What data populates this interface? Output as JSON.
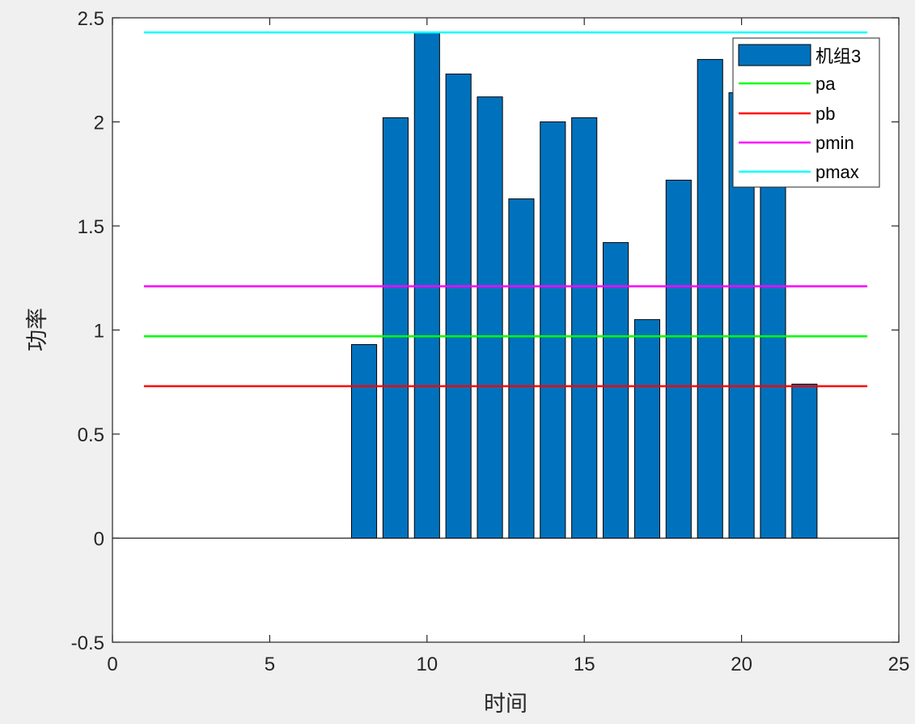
{
  "chart_data": {
    "type": "bar",
    "title": "",
    "xlabel": "时间",
    "ylabel": "功率",
    "xlim": [
      0,
      25
    ],
    "ylim": [
      -0.5,
      2.5
    ],
    "xticks": [
      0,
      5,
      10,
      15,
      20,
      25
    ],
    "yticks": [
      -0.5,
      0,
      0.5,
      1,
      1.5,
      2,
      2.5
    ],
    "xtick_labels": [
      "0",
      "5",
      "10",
      "15",
      "20",
      "25"
    ],
    "ytick_labels": [
      "-0.5",
      "0",
      "0.5",
      "1",
      "1.5",
      "2",
      "2.5"
    ],
    "grid": false,
    "legend_position": "top-right",
    "bar_series": {
      "name": "机组3",
      "color": "#0072BD",
      "x": [
        1,
        2,
        3,
        4,
        5,
        6,
        7,
        8,
        9,
        10,
        11,
        12,
        13,
        14,
        15,
        16,
        17,
        18,
        19,
        20,
        21,
        22,
        23,
        24
      ],
      "values": [
        0,
        0,
        0,
        0,
        0,
        0,
        0,
        0.93,
        2.02,
        2.43,
        2.23,
        2.12,
        1.63,
        2.0,
        2.02,
        1.42,
        1.05,
        1.72,
        2.3,
        2.14,
        1.72,
        0.74,
        0,
        0
      ]
    },
    "line_series": [
      {
        "name": "pa",
        "color": "#00FF00",
        "x": [
          1,
          24
        ],
        "y": [
          0.97,
          0.97
        ]
      },
      {
        "name": "pb",
        "color": "#FF0000",
        "x": [
          1,
          24
        ],
        "y": [
          0.73,
          0.73
        ]
      },
      {
        "name": "pmin",
        "color": "#FF00FF",
        "x": [
          1,
          24
        ],
        "y": [
          1.21,
          1.21
        ]
      },
      {
        "name": "pmax",
        "color": "#00FFFF",
        "x": [
          1,
          24
        ],
        "y": [
          2.43,
          2.43
        ]
      }
    ]
  }
}
